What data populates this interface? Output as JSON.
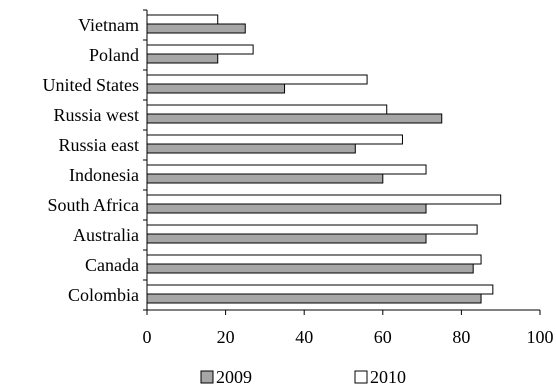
{
  "chart_data": {
    "type": "bar",
    "orientation": "horizontal",
    "categories": [
      "Vietnam",
      "Poland",
      "United States",
      "Russia west",
      "Russia east",
      "Indonesia",
      "South Africa",
      "Australia",
      "Canada",
      "Colombia"
    ],
    "series": [
      {
        "name": "2009",
        "values": [
          25,
          18,
          35,
          75,
          53,
          60,
          71,
          71,
          83,
          85
        ],
        "color": "#a6a6a6"
      },
      {
        "name": "2010",
        "values": [
          18,
          27,
          56,
          61,
          65,
          71,
          90,
          84,
          85,
          88
        ],
        "color": "#ffffff"
      }
    ],
    "xlim": [
      0,
      100
    ],
    "xticks": [
      0,
      20,
      40,
      60,
      80,
      100
    ],
    "grid": false,
    "legend_position": "bottom",
    "title": "",
    "xlabel": "",
    "ylabel": ""
  }
}
